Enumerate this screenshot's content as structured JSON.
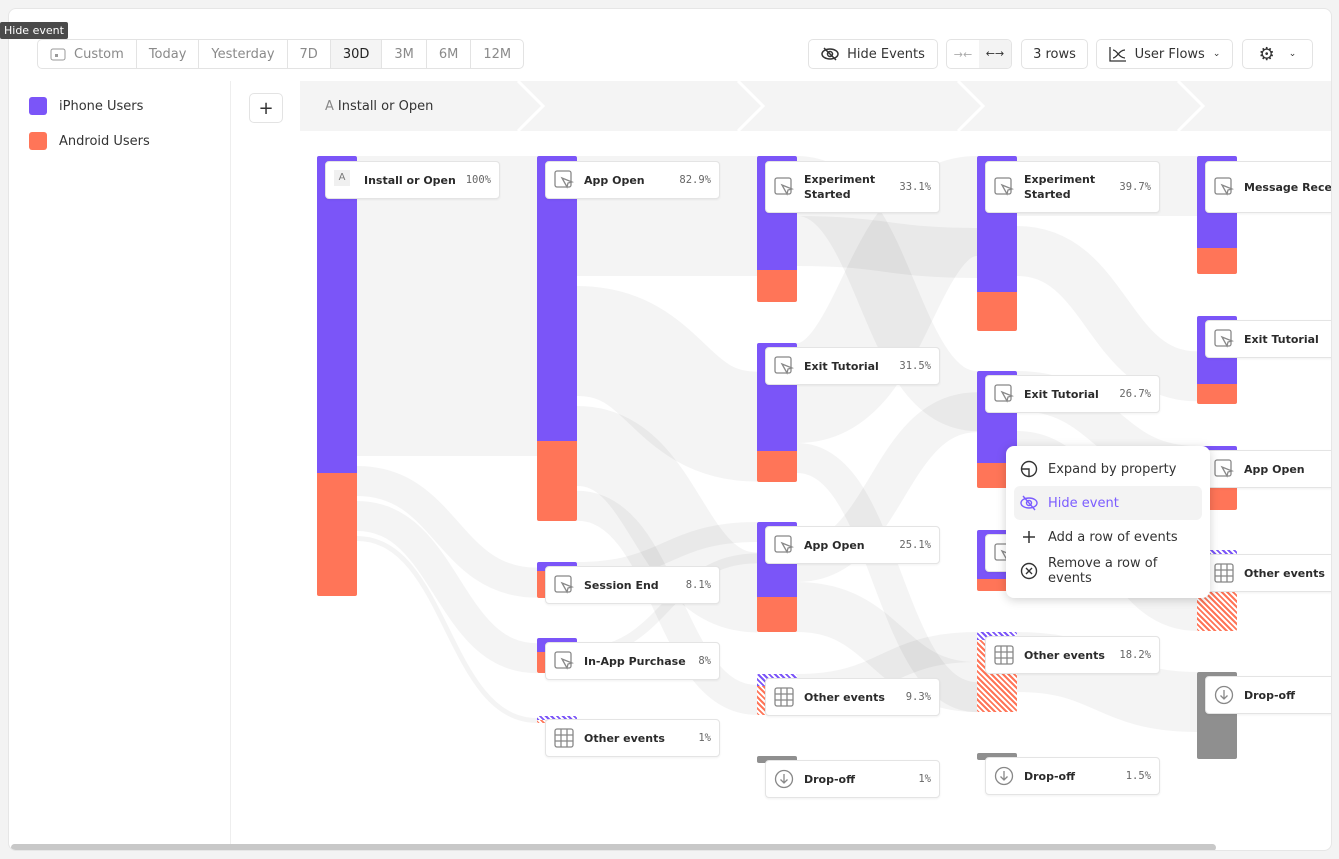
{
  "tooltip": "Hide event",
  "date_range": {
    "options": [
      "Custom",
      "Today",
      "Yesterday",
      "7D",
      "30D",
      "3M",
      "6M",
      "12M"
    ],
    "selected": "30D"
  },
  "toolbar": {
    "hide_events": "Hide Events",
    "rows": "3 rows",
    "view": "User Flows"
  },
  "legend": [
    {
      "label": "iPhone Users",
      "color": "#7b55f8"
    },
    {
      "label": "Android Users",
      "color": "#ff7558"
    }
  ],
  "header": {
    "letter": "A",
    "step": "Install or Open"
  },
  "colors": {
    "iphone": "#7b55f8",
    "android": "#ff7558",
    "dropoff": "#8f8f8f"
  },
  "columns": [
    [
      {
        "label": "Install or Open",
        "pct": "100%",
        "share": 100,
        "iphone": 0.72,
        "icon": "letter-a",
        "letter": "A"
      }
    ],
    [
      {
        "label": "App Open",
        "pct": "82.9%",
        "share": 82.9,
        "iphone": 0.78,
        "icon": "cursor"
      },
      {
        "label": "Session End",
        "pct": "8.1%",
        "share": 8.1,
        "iphone": 0.25,
        "icon": "cursor"
      },
      {
        "label": "In-App Purchase",
        "pct": "8%",
        "share": 8,
        "iphone": 0.4,
        "icon": "cursor"
      },
      {
        "label": "Other events",
        "pct": "1%",
        "share": 1,
        "iphone": 0.5,
        "icon": "grid",
        "hatched": true
      }
    ],
    [
      {
        "label": "Experiment Started",
        "pct": "33.1%",
        "share": 33.1,
        "iphone": 0.78,
        "icon": "cursor"
      },
      {
        "label": "Exit Tutorial",
        "pct": "31.5%",
        "share": 31.5,
        "iphone": 0.78,
        "icon": "cursor"
      },
      {
        "label": "App Open",
        "pct": "25.1%",
        "share": 25.1,
        "iphone": 0.68,
        "icon": "cursor"
      },
      {
        "label": "Other events",
        "pct": "9.3%",
        "share": 9.3,
        "iphone": 0.3,
        "icon": "grid",
        "hatched": true
      },
      {
        "label": "Drop-off",
        "pct": "1%",
        "share": 1,
        "icon": "arrow-down",
        "dropoff": true
      }
    ],
    [
      {
        "label": "Experiment Started",
        "pct": "39.7%",
        "share": 39.7,
        "iphone": 0.78,
        "icon": "cursor"
      },
      {
        "label": "Exit Tutorial",
        "pct": "26.7%",
        "share": 26.7,
        "iphone": 0.78,
        "icon": "cursor"
      },
      {
        "label": "",
        "pct": "",
        "share": 13.9,
        "iphone": 0.8,
        "icon": "cursor"
      },
      {
        "label": "Other events",
        "pct": "18.2%",
        "share": 18.2,
        "iphone": 0.1,
        "icon": "grid",
        "hatched": true
      },
      {
        "label": "Drop-off",
        "pct": "1.5%",
        "share": 1.5,
        "icon": "arrow-down",
        "dropoff": true
      }
    ],
    [
      {
        "label": "Message Received",
        "pct": "",
        "share": 26.8,
        "iphone": 0.78,
        "icon": "cursor"
      },
      {
        "label": "Exit Tutorial",
        "pct": "",
        "share": 20,
        "iphone": 0.77,
        "icon": "cursor"
      },
      {
        "label": "App Open",
        "pct": "",
        "share": 14.5,
        "iphone": 0.66,
        "icon": "cursor"
      },
      {
        "label": "Other events",
        "pct": "",
        "share": 18.4,
        "iphone": 0.05,
        "icon": "grid",
        "hatched": true
      },
      {
        "label": "Drop-off",
        "pct": "",
        "share": 19.8,
        "icon": "arrow-down",
        "dropoff": true
      }
    ]
  ],
  "context_menu": [
    {
      "label": "Expand by property",
      "icon": "expand-icon"
    },
    {
      "label": "Hide event",
      "icon": "eye-off-icon",
      "active": true
    },
    {
      "label": "Add a row of events",
      "icon": "plus-icon"
    },
    {
      "label": "Remove a row of events",
      "icon": "close-circle-icon"
    }
  ]
}
